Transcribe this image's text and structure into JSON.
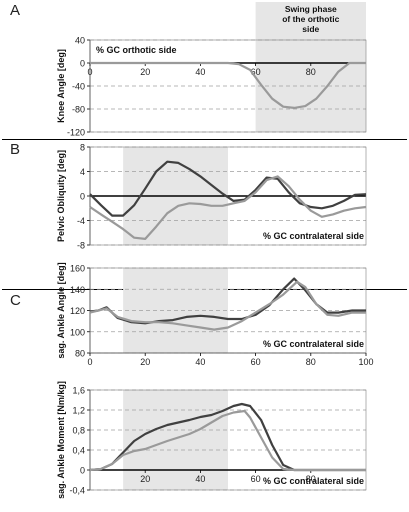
{
  "panels": [
    {
      "letter": "A"
    },
    {
      "letter": "B"
    },
    {
      "letter": "C"
    }
  ],
  "colors": {
    "dark_series": "#404040",
    "light_series": "#9a9a9a",
    "shade": "#e6e6e6",
    "grid": "#a0a0a0"
  },
  "chart_data": [
    {
      "type": "line",
      "panel": "A",
      "ylabel": "Knee Angle [deg]",
      "inner_label": "% GC orthotic side",
      "annotation": "Swing phase\nof the orthotic\nside",
      "shaded_region_x": [
        60,
        100
      ],
      "xlim": [
        0,
        100
      ],
      "ylim": [
        -120,
        40
      ],
      "yticks": [
        40,
        0,
        -40,
        -80,
        -120
      ],
      "xticks": [
        0,
        20,
        40,
        60,
        80
      ],
      "x_tick_labels_at_zero": true,
      "grid": "horizontal dashed",
      "series": [
        {
          "color": "light",
          "x": [
            0,
            10,
            20,
            30,
            40,
            50,
            54,
            58,
            62,
            66,
            70,
            74,
            78,
            82,
            86,
            90,
            94,
            100
          ],
          "y": [
            0,
            0,
            0,
            0,
            0,
            0,
            -2,
            -12,
            -38,
            -62,
            -76,
            -78,
            -75,
            -62,
            -40,
            -15,
            0,
            0
          ]
        }
      ]
    },
    {
      "type": "line",
      "panel": "B",
      "ylabel": "Pelvic Obliquity [deg]",
      "inner_label": "% GC contralateral side",
      "shaded_region_x": [
        12,
        50
      ],
      "xlim": [
        0,
        100
      ],
      "ylim": [
        -8,
        8
      ],
      "yticks": [
        8,
        4,
        0,
        -4,
        -8
      ],
      "grid": "horizontal dashed",
      "series": [
        {
          "color": "dark",
          "x": [
            0,
            4,
            8,
            12,
            16,
            20,
            24,
            28,
            32,
            36,
            40,
            44,
            48,
            52,
            56,
            60,
            64,
            68,
            72,
            76,
            80,
            84,
            88,
            92,
            96,
            100
          ],
          "y": [
            0.3,
            -1.5,
            -3.2,
            -3.2,
            -1.5,
            1.2,
            4.0,
            5.6,
            5.4,
            4.4,
            3.2,
            1.8,
            0.4,
            -0.8,
            -0.6,
            1.0,
            3.0,
            2.8,
            0.6,
            -1.2,
            -1.8,
            -2.0,
            -1.6,
            -0.8,
            0.2,
            0.3
          ]
        },
        {
          "color": "light",
          "x": [
            0,
            4,
            8,
            12,
            16,
            20,
            24,
            28,
            32,
            36,
            40,
            44,
            48,
            52,
            56,
            60,
            64,
            68,
            72,
            76,
            80,
            84,
            88,
            92,
            96,
            100
          ],
          "y": [
            -1.8,
            -3.0,
            -4.2,
            -5.4,
            -6.8,
            -7.0,
            -5.0,
            -2.8,
            -1.6,
            -1.2,
            -1.3,
            -1.6,
            -1.6,
            -1.2,
            -0.8,
            0.6,
            2.6,
            3.2,
            1.6,
            -0.6,
            -2.4,
            -3.4,
            -3.0,
            -2.4,
            -2.0,
            -1.8
          ]
        }
      ]
    },
    {
      "type": "line",
      "panel": "C",
      "ylabel": "sag. Ankle Angle [deg]",
      "inner_label": "% GC contralateral side",
      "shaded_region_x": [
        12,
        50
      ],
      "xlim": [
        0,
        100
      ],
      "ylim": [
        80,
        160
      ],
      "yticks": [
        160,
        140,
        120,
        100,
        80
      ],
      "xticks": [
        0,
        20,
        40,
        60,
        80,
        100
      ],
      "grid": "horizontal dashed",
      "series": [
        {
          "color": "dark",
          "x": [
            0,
            3,
            6,
            10,
            15,
            20,
            25,
            30,
            35,
            40,
            45,
            50,
            55,
            60,
            65,
            70,
            74,
            78,
            82,
            86,
            90,
            95,
            100
          ],
          "y": [
            119,
            120,
            123,
            113,
            109,
            108,
            110,
            111,
            114,
            115,
            114,
            112,
            112,
            116,
            125,
            140,
            150,
            139,
            126,
            118,
            118,
            120,
            120
          ]
        },
        {
          "color": "light",
          "x": [
            0,
            3,
            6,
            10,
            15,
            20,
            25,
            30,
            35,
            40,
            45,
            50,
            55,
            60,
            65,
            70,
            75,
            78,
            82,
            86,
            90,
            95,
            100
          ],
          "y": [
            118,
            120,
            122,
            114,
            110,
            109,
            109,
            108,
            106,
            104,
            102,
            104,
            110,
            118,
            126,
            135,
            147,
            142,
            126,
            116,
            115,
            118,
            118
          ]
        }
      ]
    },
    {
      "type": "line",
      "panel": "C",
      "ylabel": "sag. Ankle Moment [Nm/kg]",
      "inner_label": "% GC contralateral side",
      "shaded_region_x": [
        12,
        50
      ],
      "xlim": [
        0,
        100
      ],
      "ylim": [
        -0.4,
        1.6
      ],
      "yticks": [
        "1,6",
        "1,2",
        "0,8",
        "0,4",
        "0",
        "-0,4"
      ],
      "ytick_values": [
        1.6,
        1.2,
        0.8,
        0.4,
        0,
        -0.4
      ],
      "xticks": [
        20,
        40,
        60,
        80
      ],
      "grid": "horizontal dashed",
      "series": [
        {
          "color": "dark",
          "x": [
            0,
            4,
            8,
            12,
            16,
            20,
            24,
            28,
            32,
            36,
            40,
            44,
            48,
            52,
            55,
            58,
            62,
            66,
            70,
            74,
            80,
            100
          ],
          "y": [
            0,
            0.02,
            0.12,
            0.35,
            0.58,
            0.72,
            0.82,
            0.9,
            0.95,
            1.0,
            1.06,
            1.1,
            1.18,
            1.28,
            1.32,
            1.28,
            1.0,
            0.5,
            0.1,
            0.0,
            0.0,
            0.0
          ]
        },
        {
          "color": "light",
          "x": [
            0,
            4,
            8,
            12,
            16,
            20,
            24,
            28,
            32,
            36,
            40,
            44,
            48,
            52,
            56,
            58,
            62,
            66,
            70,
            74,
            80,
            100
          ],
          "y": [
            0,
            0.02,
            0.12,
            0.3,
            0.38,
            0.42,
            0.5,
            0.58,
            0.65,
            0.72,
            0.82,
            0.95,
            1.08,
            1.15,
            1.18,
            1.05,
            0.65,
            0.25,
            0.02,
            0.0,
            0.0,
            0.0
          ]
        }
      ]
    }
  ]
}
